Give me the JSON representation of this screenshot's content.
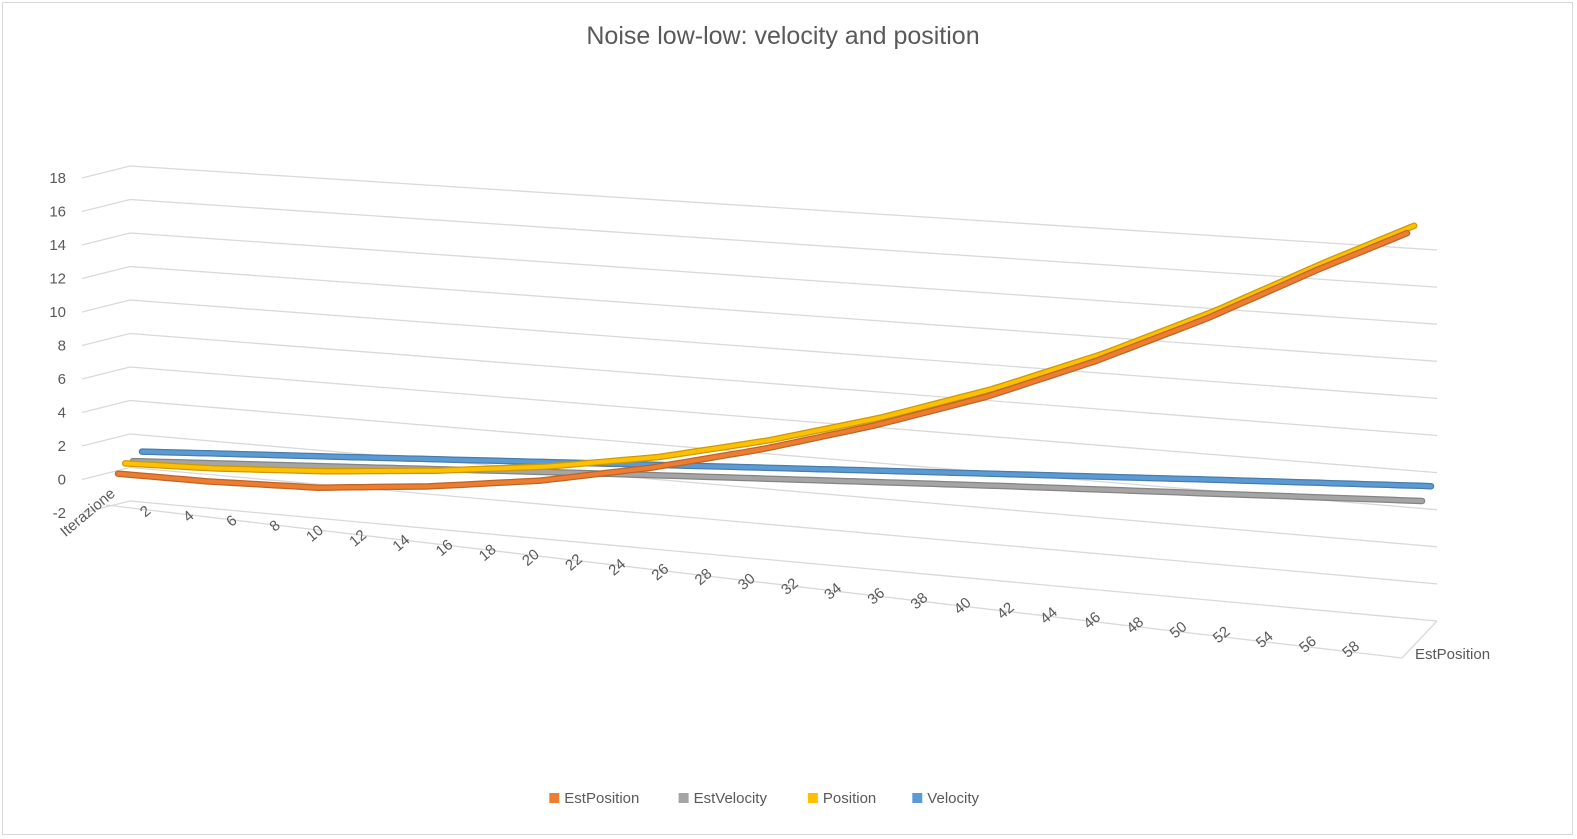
{
  "chart_data": {
    "type": "line",
    "variant": "3d-line",
    "title": "Noise low-low: velocity and position",
    "xlabel": "Iterazione",
    "depth_label": "EstPosition",
    "ylim": [
      -2,
      18
    ],
    "yticks": [
      "-2",
      "0",
      "2",
      "4",
      "6",
      "8",
      "10",
      "12",
      "14",
      "16",
      "18"
    ],
    "x_range": [
      1,
      59
    ],
    "xticks": [
      "2",
      "4",
      "6",
      "8",
      "10",
      "12",
      "14",
      "16",
      "18",
      "20",
      "22",
      "24",
      "26",
      "28",
      "30",
      "32",
      "34",
      "36",
      "38",
      "40",
      "42",
      "44",
      "46",
      "48",
      "50",
      "52",
      "54",
      "56",
      "58"
    ],
    "legend_position": "bottom",
    "series": [
      {
        "name": "EstPosition",
        "color": "#ED7D31",
        "x": [
          1,
          5,
          10,
          15,
          20,
          25,
          30,
          35,
          40,
          45,
          50,
          55,
          59
        ],
        "values": [
          -0.1,
          -0.5,
          -0.8,
          -0.65,
          -0.25,
          0.55,
          1.65,
          3.0,
          4.6,
          6.6,
          8.9,
          11.5,
          13.4
        ]
      },
      {
        "name": "EstVelocity",
        "color": "#A5A5A5",
        "x": [
          1,
          10,
          20,
          30,
          40,
          50,
          59
        ],
        "values": [
          0.2,
          0.0,
          -0.2,
          -0.45,
          -0.7,
          -1.0,
          -1.25
        ]
      },
      {
        "name": "Position",
        "color": "#FFC000",
        "x": [
          1,
          5,
          10,
          15,
          20,
          25,
          30,
          35,
          40,
          45,
          50,
          55,
          59
        ],
        "values": [
          0.3,
          0.05,
          -0.05,
          0.05,
          0.35,
          0.95,
          1.95,
          3.25,
          4.85,
          6.8,
          9.1,
          11.7,
          13.6
        ]
      },
      {
        "name": "Velocity",
        "color": "#5B9BD5",
        "x": [
          1,
          10,
          20,
          30,
          40,
          50,
          59
        ],
        "values": [
          0.5,
          0.3,
          0.1,
          -0.1,
          -0.3,
          -0.5,
          -0.7
        ]
      }
    ]
  }
}
